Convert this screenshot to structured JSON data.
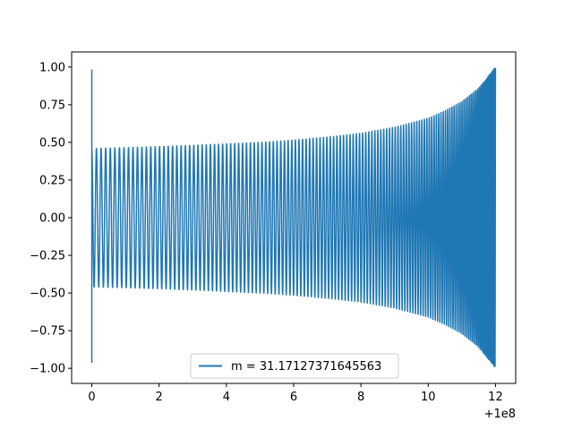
{
  "chart_data": {
    "type": "line",
    "title": "",
    "xlabel": "",
    "ylabel": "",
    "x_offset_label": "+1e8",
    "xlim": [
      -0.6,
      12.6
    ],
    "ylim": [
      -1.1,
      1.1
    ],
    "x_ticks": [
      0,
      2,
      4,
      6,
      8,
      10,
      12
    ],
    "x_tick_labels": [
      "0",
      "2",
      "4",
      "6",
      "8",
      "10",
      "12"
    ],
    "y_ticks": [
      -1.0,
      -0.75,
      -0.5,
      -0.25,
      0.0,
      0.25,
      0.5,
      0.75,
      1.0
    ],
    "y_tick_labels": [
      "−1.00",
      "−0.75",
      "−0.50",
      "−0.25",
      "0.00",
      "0.25",
      "0.50",
      "0.75",
      "1.00"
    ],
    "grid": false,
    "legend": {
      "placement": "lower-center",
      "entries": [
        "m = 31.17127371645563"
      ]
    },
    "series": [
      {
        "name": "m = 31.17127371645563",
        "color": "#1f77b4",
        "kind": "chirp",
        "x_start": 0.0,
        "x_end": 12.0,
        "initial_spike": {
          "x": 0.0,
          "max": 0.98,
          "min": -0.96
        },
        "envelope_x": [
          0.0,
          1.0,
          2.0,
          3.0,
          4.0,
          5.0,
          6.0,
          7.0,
          8.0,
          9.0,
          10.0,
          10.5,
          11.0,
          11.5,
          12.0
        ],
        "envelope_amplitude": [
          0.46,
          0.465,
          0.472,
          0.48,
          0.49,
          0.5,
          0.515,
          0.535,
          0.56,
          0.6,
          0.66,
          0.71,
          0.77,
          0.86,
          1.0
        ]
      }
    ]
  }
}
